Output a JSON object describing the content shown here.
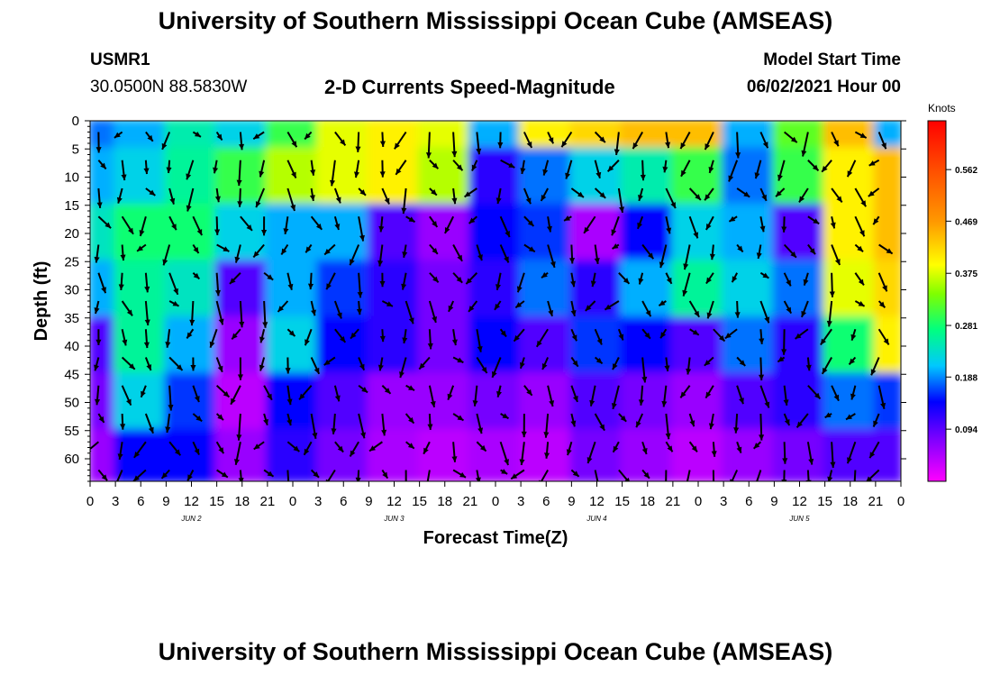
{
  "title": "University of Southern Mississippi Ocean Cube (AMSEAS)",
  "footer_title": "University of Southern Mississippi Ocean Cube (AMSEAS)",
  "station": "USMR1",
  "coords": "30.0500N  88.5830W",
  "subtitle": "2-D Currents Speed-Magnitude",
  "model_start_label": "Model Start Time",
  "model_start_value": "06/02/2021 Hour 00",
  "chart_data": {
    "type": "heatmap",
    "xlabel": "Forecast Time(Z)",
    "ylabel": "Depth (ft)",
    "colorbar_label": "Knots",
    "ylim": [
      0,
      64
    ],
    "xlim": [
      0,
      96
    ],
    "x_tick_labels": [
      "0",
      "3",
      "6",
      "9",
      "12",
      "15",
      "18",
      "21",
      "0",
      "3",
      "6",
      "9",
      "12",
      "15",
      "18",
      "21",
      "0",
      "3",
      "6",
      "9",
      "12",
      "15",
      "18",
      "21",
      "0",
      "3",
      "6",
      "9",
      "12",
      "15",
      "18",
      "21",
      "0"
    ],
    "day_labels": [
      "JUN 2",
      "JUN 3",
      "JUN 4",
      "JUN 5"
    ],
    "y_ticks": [
      0,
      5,
      10,
      15,
      20,
      25,
      30,
      35,
      40,
      45,
      50,
      55,
      60
    ],
    "colorbar_ticks": [
      0.094,
      0.188,
      0.281,
      0.375,
      0.469,
      0.562
    ],
    "colorbar_range": [
      0,
      0.65
    ],
    "speed_grid_depths": [
      0,
      10,
      20,
      30,
      40,
      50,
      60
    ],
    "speed_grid_hours": [
      0,
      6,
      12,
      18,
      24,
      30,
      36,
      42,
      48,
      54,
      60,
      66,
      72,
      78,
      84,
      90,
      96
    ],
    "speed_grid": [
      [
        0.18,
        0.2,
        0.25,
        0.22,
        0.3,
        0.38,
        0.4,
        0.38,
        0.2,
        0.4,
        0.42,
        0.44,
        0.44,
        0.2,
        0.32,
        0.44,
        0.2
      ],
      [
        0.2,
        0.22,
        0.26,
        0.3,
        0.36,
        0.38,
        0.4,
        0.36,
        0.12,
        0.18,
        0.22,
        0.25,
        0.3,
        0.18,
        0.3,
        0.4,
        0.44
      ],
      [
        0.24,
        0.28,
        0.28,
        0.22,
        0.2,
        0.2,
        0.1,
        0.06,
        0.14,
        0.16,
        0.05,
        0.14,
        0.22,
        0.2,
        0.1,
        0.4,
        0.44
      ],
      [
        0.2,
        0.26,
        0.24,
        0.1,
        0.2,
        0.16,
        0.12,
        0.08,
        0.12,
        0.18,
        0.12,
        0.2,
        0.26,
        0.22,
        0.18,
        0.38,
        0.42
      ],
      [
        0.1,
        0.26,
        0.2,
        0.06,
        0.22,
        0.14,
        0.12,
        0.08,
        0.14,
        0.1,
        0.16,
        0.14,
        0.1,
        0.18,
        0.12,
        0.28,
        0.4
      ],
      [
        0.08,
        0.22,
        0.16,
        0.04,
        0.14,
        0.1,
        0.06,
        0.06,
        0.08,
        0.06,
        0.1,
        0.08,
        0.06,
        0.1,
        0.12,
        0.18,
        0.16
      ],
      [
        0.06,
        0.14,
        0.14,
        0.06,
        0.12,
        0.08,
        0.05,
        0.04,
        0.05,
        0.04,
        0.08,
        0.06,
        0.04,
        0.06,
        0.08,
        0.1,
        0.1
      ]
    ]
  }
}
